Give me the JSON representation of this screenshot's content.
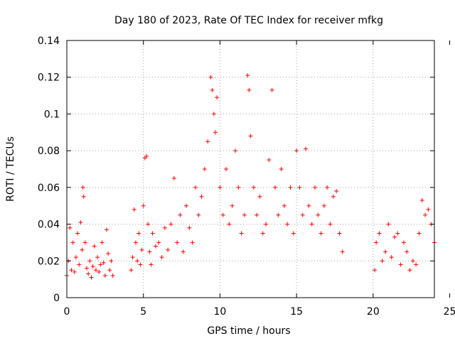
{
  "chart_data": {
    "type": "scatter",
    "title": "Day 180 of 2023, Rate Of TEC Index for receiver mfkg",
    "xlabel": "GPS time / hours",
    "ylabel": "ROTI / TECUs",
    "xlim": [
      0,
      24
    ],
    "ylim": [
      0,
      0.14
    ],
    "xticks": [
      0,
      5,
      10,
      15,
      20,
      25
    ],
    "xtick_labels": [
      "0",
      "5",
      "10",
      "15",
      "20",
      "25"
    ],
    "yticks": [
      0,
      0.02,
      0.04,
      0.06,
      0.08,
      0.1,
      0.12,
      0.14
    ],
    "ytick_labels": [
      "0",
      "0.02",
      "0.04",
      "0.06",
      "0.08",
      "0.1",
      "0.12",
      "0.14"
    ],
    "grid": true,
    "marker": "+",
    "color": "#ff0000",
    "series": [
      {
        "x": [
          0.0,
          0.1,
          0.2,
          0.3,
          0.4,
          0.5,
          0.6,
          0.7,
          0.8,
          0.9,
          1.0,
          1.05,
          1.1,
          1.2,
          1.3,
          1.4,
          1.5,
          1.6,
          1.7,
          1.8,
          1.9,
          2.0,
          2.1,
          2.2,
          2.3,
          2.4,
          2.5,
          2.6,
          2.7,
          2.8,
          2.9,
          3.0,
          4.2,
          4.3,
          4.4,
          4.5,
          4.6,
          4.7,
          4.8,
          4.9,
          5.0,
          5.1,
          5.2,
          5.3,
          5.4,
          5.5,
          5.6,
          5.8,
          6.0,
          6.2,
          6.4,
          6.6,
          6.8,
          7.0,
          7.2,
          7.4,
          7.6,
          7.8,
          8.0,
          8.2,
          8.4,
          8.6,
          8.8,
          9.0,
          9.2,
          9.4,
          9.5,
          9.6,
          9.7,
          9.8,
          10.0,
          10.2,
          10.4,
          10.6,
          10.8,
          11.0,
          11.2,
          11.4,
          11.6,
          11.8,
          11.9,
          12.0,
          12.2,
          12.4,
          12.6,
          12.8,
          13.0,
          13.2,
          13.4,
          13.6,
          13.8,
          14.0,
          14.2,
          14.4,
          14.6,
          14.8,
          15.0,
          15.2,
          15.4,
          15.6,
          15.8,
          16.0,
          16.2,
          16.4,
          16.6,
          16.8,
          17.0,
          17.2,
          17.4,
          17.6,
          17.8,
          18.0,
          20.1,
          20.2,
          20.4,
          20.6,
          20.8,
          21.0,
          21.2,
          21.4,
          21.6,
          21.8,
          22.0,
          22.2,
          22.4,
          22.6,
          22.8,
          23.0,
          23.2,
          23.4,
          23.6,
          23.8,
          24.0
        ],
        "y": [
          0.012,
          0.02,
          0.038,
          0.015,
          0.03,
          0.014,
          0.022,
          0.035,
          0.018,
          0.041,
          0.026,
          0.06,
          0.055,
          0.03,
          0.016,
          0.013,
          0.02,
          0.011,
          0.017,
          0.028,
          0.015,
          0.022,
          0.014,
          0.018,
          0.03,
          0.019,
          0.012,
          0.037,
          0.024,
          0.015,
          0.02,
          0.012,
          0.015,
          0.022,
          0.048,
          0.03,
          0.02,
          0.035,
          0.018,
          0.026,
          0.05,
          0.076,
          0.077,
          0.04,
          0.025,
          0.018,
          0.035,
          0.028,
          0.03,
          0.022,
          0.038,
          0.026,
          0.04,
          0.065,
          0.03,
          0.045,
          0.025,
          0.05,
          0.038,
          0.03,
          0.06,
          0.045,
          0.055,
          0.07,
          0.085,
          0.12,
          0.113,
          0.1,
          0.09,
          0.109,
          0.06,
          0.045,
          0.07,
          0.04,
          0.05,
          0.08,
          0.06,
          0.035,
          0.045,
          0.121,
          0.113,
          0.088,
          0.06,
          0.045,
          0.055,
          0.035,
          0.04,
          0.075,
          0.113,
          0.06,
          0.045,
          0.07,
          0.05,
          0.04,
          0.06,
          0.035,
          0.08,
          0.06,
          0.045,
          0.081,
          0.05,
          0.04,
          0.06,
          0.045,
          0.035,
          0.05,
          0.06,
          0.04,
          0.055,
          0.058,
          0.035,
          0.025,
          0.015,
          0.03,
          0.035,
          0.02,
          0.025,
          0.04,
          0.022,
          0.033,
          0.035,
          0.018,
          0.03,
          0.025,
          0.015,
          0.02,
          0.018,
          0.035,
          0.053,
          0.045,
          0.048,
          0.04,
          0.03
        ]
      }
    ]
  }
}
